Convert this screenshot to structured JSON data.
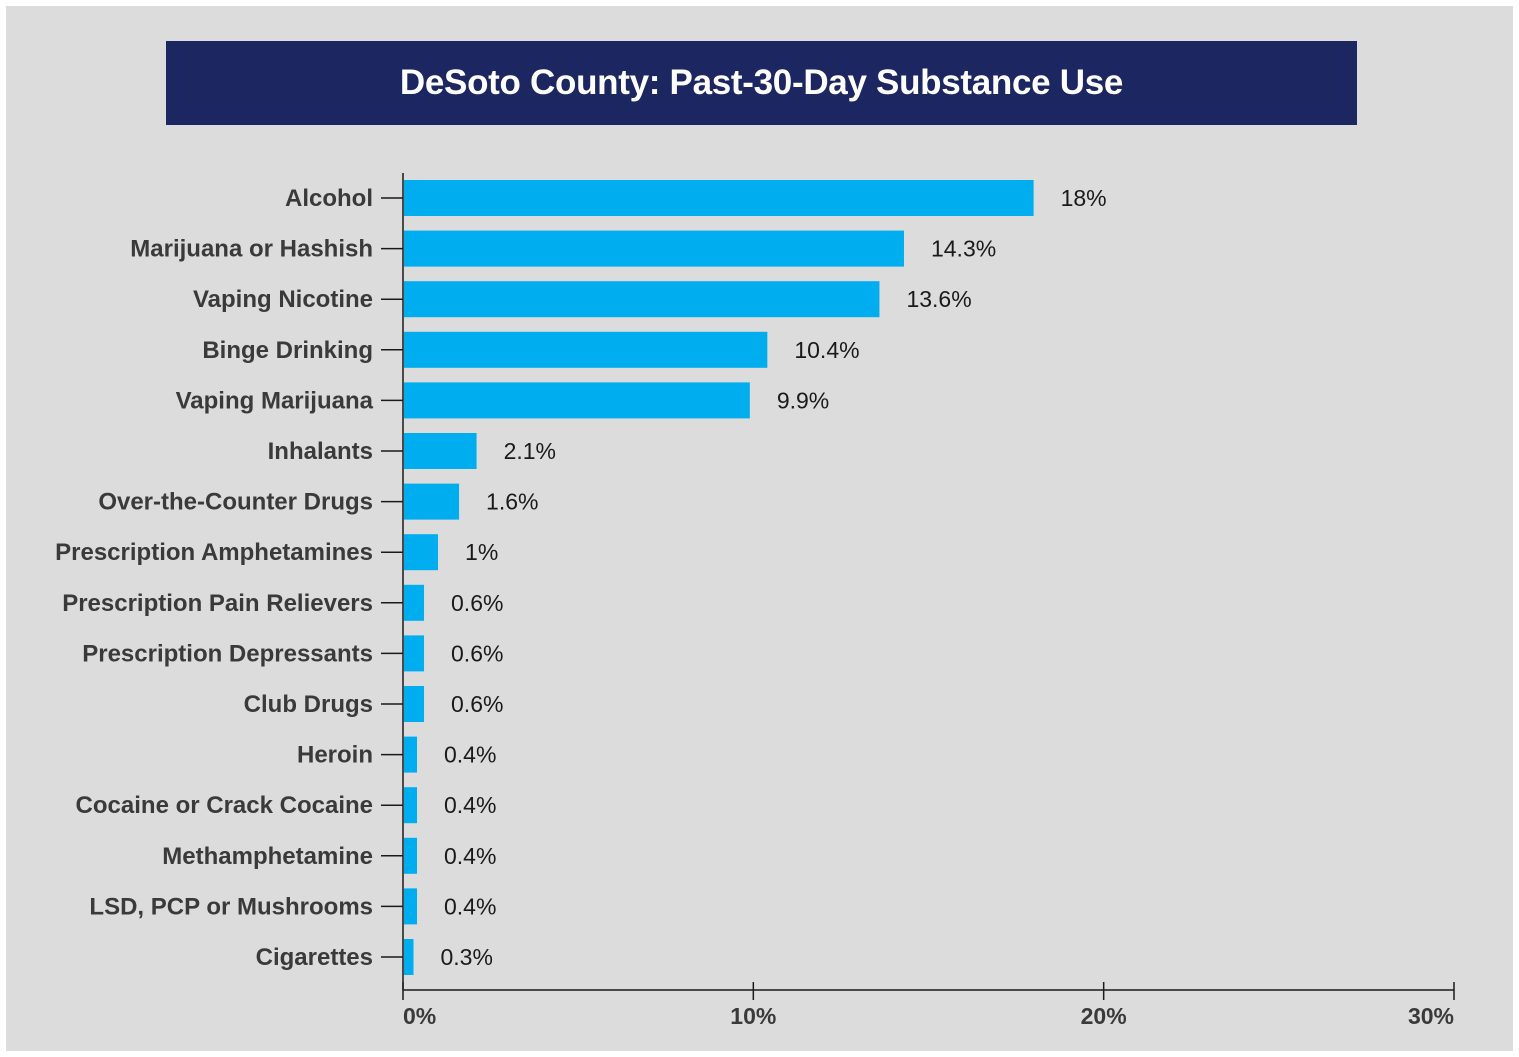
{
  "colors": {
    "background": "#dcdcdc",
    "title_bg": "#1c2762",
    "bar": "#00aeef"
  },
  "chart_data": {
    "type": "bar",
    "orientation": "horizontal",
    "title": "DeSoto County: Past-30-Day Substance Use",
    "categories": [
      "Alcohol",
      "Marijuana or Hashish",
      "Vaping Nicotine",
      "Binge Drinking",
      "Vaping Marijuana",
      "Inhalants",
      "Over-the-Counter Drugs",
      "Prescription Amphetamines",
      "Prescription Pain Relievers",
      "Prescription Depressants",
      "Club Drugs",
      "Heroin",
      "Cocaine or Crack Cocaine",
      "Methamphetamine",
      "LSD, PCP or Mushrooms",
      "Cigarettes"
    ],
    "values": [
      18,
      14.3,
      13.6,
      10.4,
      9.9,
      2.1,
      1.6,
      1,
      0.6,
      0.6,
      0.6,
      0.4,
      0.4,
      0.4,
      0.4,
      0.3
    ],
    "value_labels": [
      "18%",
      "14.3%",
      "13.6%",
      "10.4%",
      "9.9%",
      "2.1%",
      "1.6%",
      "1%",
      "0.6%",
      "0.6%",
      "0.6%",
      "0.4%",
      "0.4%",
      "0.4%",
      "0.4%",
      "0.3%"
    ],
    "xlim": [
      0,
      30
    ],
    "xticks": [
      0,
      10,
      20,
      30
    ],
    "xtick_labels": [
      "0%",
      "10%",
      "20%",
      "30%"
    ],
    "xlabel": "",
    "ylabel": "",
    "grid": false,
    "legend": "none"
  }
}
